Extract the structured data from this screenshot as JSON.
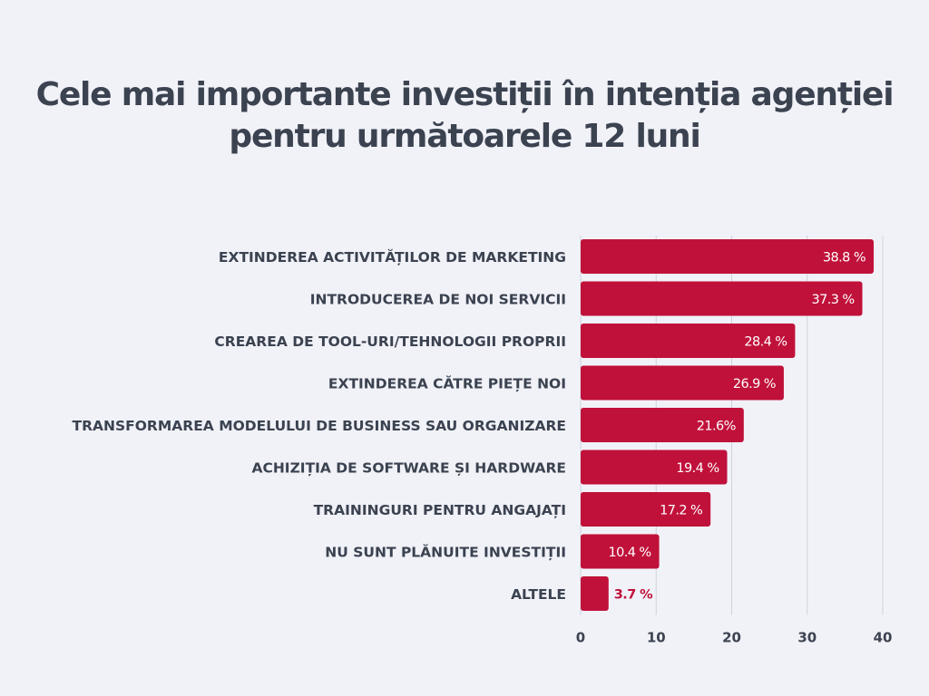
{
  "chart_data": {
    "type": "bar",
    "orientation": "horizontal",
    "title": [
      "Cele mai importante investiții în intenția agenției",
      "pentru următoarele 12 luni"
    ],
    "categories": [
      "EXTINDEREA ACTIVITĂȚILOR DE MARKETING",
      "INTRODUCEREA DE NOI SERVICII",
      "CREAREA DE TOOL-URI/TEHNOLOGII PROPRII",
      "EXTINDEREA CĂTRE PIEȚE NOI",
      "TRANSFORMAREA MODELULUI DE BUSINESS SAU ORGANIZARE",
      "ACHIZIȚIA DE SOFTWARE ȘI HARDWARE",
      "TRAININGURI PENTRU ANGAJAȚI",
      "NU SUNT PLĂNUITE INVESTIȚII",
      "ALTELE"
    ],
    "values": [
      38.8,
      37.3,
      28.4,
      26.9,
      21.6,
      19.4,
      17.2,
      10.4,
      3.7
    ],
    "value_labels": [
      "38.8 %",
      "37.3 %",
      "28.4 %",
      "26.9 %",
      "21.6%",
      "19.4 %",
      "17.2 %",
      "10.4 %",
      "3.7 %"
    ],
    "xlim": [
      0,
      40
    ],
    "xticks": [
      0,
      10,
      20,
      30,
      40
    ],
    "xlabel": "",
    "ylabel": "",
    "grid": true,
    "legend": "none",
    "colors": {
      "bar": "#c0113a",
      "bar_label_inside": "#ffffff",
      "bar_label_outside": "#c0113a",
      "grid": "#cfd1dc",
      "text": "#3b4250",
      "background": "#f1f2f8"
    }
  }
}
